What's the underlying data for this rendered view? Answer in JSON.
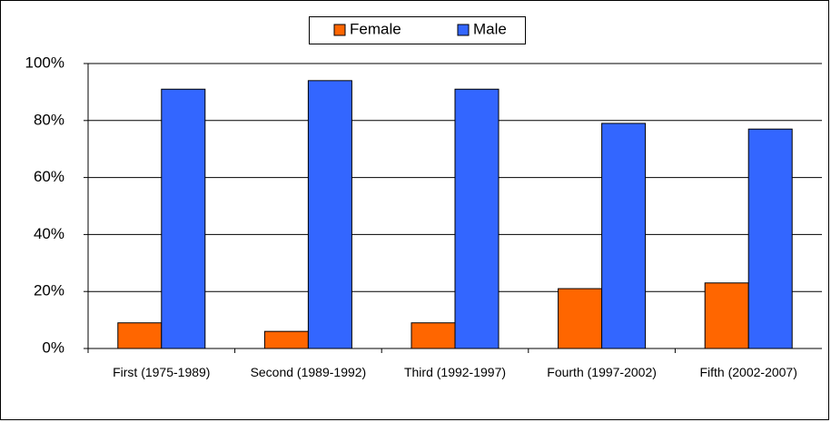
{
  "chart_data": {
    "type": "bar",
    "categories": [
      "First (1975-1989)",
      "Second (1989-1992)",
      "Third (1992-1997)",
      "Fourth (1997-2002)",
      "Fifth (2002-2007)"
    ],
    "series": [
      {
        "name": "Female",
        "color": "#ff6600",
        "values": [
          9,
          6,
          9,
          21,
          23
        ]
      },
      {
        "name": "Male",
        "color": "#3366ff",
        "values": [
          91,
          94,
          91,
          79,
          77
        ]
      }
    ],
    "ylim": [
      0,
      100
    ],
    "yticks": [
      {
        "value": 0,
        "label": "0%"
      },
      {
        "value": 20,
        "label": "20%"
      },
      {
        "value": 40,
        "label": "40%"
      },
      {
        "value": 60,
        "label": "60%"
      },
      {
        "value": 80,
        "label": "80%"
      },
      {
        "value": 100,
        "label": "100%"
      }
    ],
    "grid": true,
    "legend": "top"
  }
}
